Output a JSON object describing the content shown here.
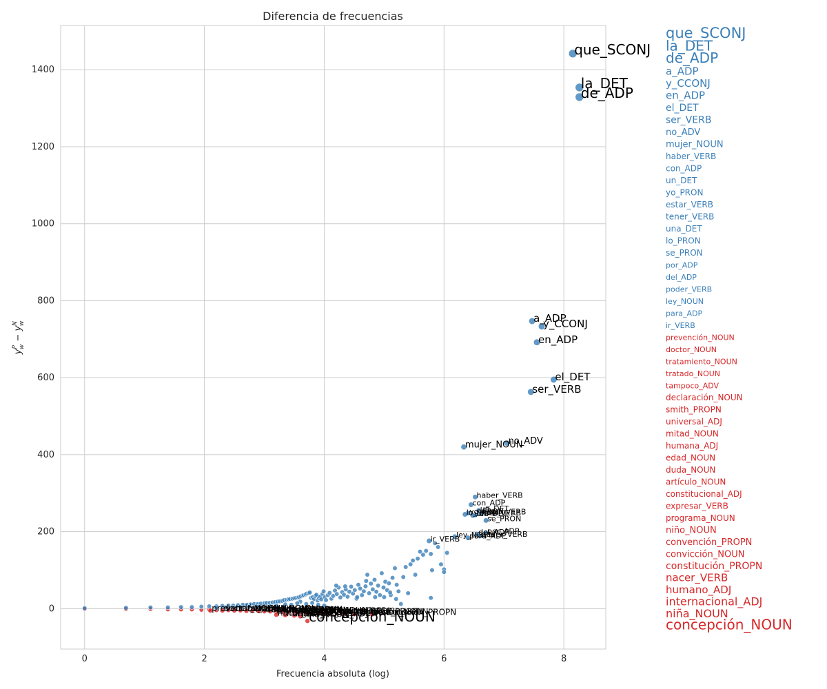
{
  "colors": {
    "positive": "#3b7fb8",
    "negative": "#d62728",
    "grid": "#cccccc"
  },
  "chart_data": {
    "type": "scatter",
    "title": "Diferencia de frecuencias",
    "xlabel": "Frecuencia absoluta (log)",
    "ylabel": "y_w^P − y_w^N",
    "xlim": [
      -0.4,
      8.7
    ],
    "ylim": [
      -105,
      1515
    ],
    "xticks": [
      0,
      2,
      4,
      6,
      8
    ],
    "yticks": [
      0,
      200,
      400,
      600,
      800,
      1000,
      1200,
      1400
    ],
    "grid": true,
    "labeled_points": [
      {
        "word": "que_SCONJ",
        "x": 8.15,
        "y": 1442,
        "group": "positive"
      },
      {
        "word": "la_DET",
        "x": 8.26,
        "y": 1354,
        "group": "positive"
      },
      {
        "word": "de_ADP",
        "x": 8.26,
        "y": 1329,
        "group": "positive"
      },
      {
        "word": "a_ADP",
        "x": 7.47,
        "y": 747,
        "group": "positive"
      },
      {
        "word": "y_CCONJ",
        "x": 7.63,
        "y": 733,
        "group": "positive"
      },
      {
        "word": "en_ADP",
        "x": 7.55,
        "y": 692,
        "group": "positive"
      },
      {
        "word": "el_DET",
        "x": 7.83,
        "y": 595,
        "group": "positive"
      },
      {
        "word": "ser_VERB",
        "x": 7.45,
        "y": 563,
        "group": "positive"
      },
      {
        "word": "no_ADV",
        "x": 7.05,
        "y": 430,
        "group": "positive"
      },
      {
        "word": "mujer_NOUN",
        "x": 6.33,
        "y": 420,
        "group": "positive"
      },
      {
        "word": "haber_VERB",
        "x": 6.52,
        "y": 290,
        "group": "positive"
      },
      {
        "word": "con_ADP",
        "x": 6.45,
        "y": 270,
        "group": "positive"
      },
      {
        "word": "un_DET",
        "x": 6.58,
        "y": 255,
        "group": "positive"
      },
      {
        "word": "yo_PRON",
        "x": 6.4,
        "y": 248,
        "group": "positive"
      },
      {
        "word": "estar_VERB",
        "x": 6.62,
        "y": 247,
        "group": "positive"
      },
      {
        "word": "tener_VERB",
        "x": 6.52,
        "y": 244,
        "group": "positive"
      },
      {
        "word": "una_DET",
        "x": 6.48,
        "y": 242,
        "group": "positive"
      },
      {
        "word": "lo_PRON",
        "x": 6.35,
        "y": 245,
        "group": "positive"
      },
      {
        "word": "se_PRON",
        "x": 6.7,
        "y": 229,
        "group": "positive"
      },
      {
        "word": "por_ADP",
        "x": 6.7,
        "y": 197,
        "group": "positive"
      },
      {
        "word": "del_ADP",
        "x": 6.55,
        "y": 194,
        "group": "positive"
      },
      {
        "word": "poder_VERB",
        "x": 6.6,
        "y": 189,
        "group": "positive"
      },
      {
        "word": "ley_NOUN",
        "x": 6.18,
        "y": 187,
        "group": "positive"
      },
      {
        "word": "para_ADP",
        "x": 6.4,
        "y": 184,
        "group": "positive"
      },
      {
        "word": "ir_VERB",
        "x": 5.75,
        "y": 176,
        "group": "positive"
      },
      {
        "word": "prevención_NOUN",
        "x": 2.1,
        "y": -5,
        "group": "negative"
      },
      {
        "word": "doctor_NOUN",
        "x": 2.3,
        "y": -5,
        "group": "negative"
      },
      {
        "word": "tratamiento_NOUN",
        "x": 2.5,
        "y": -5,
        "group": "negative"
      },
      {
        "word": "tratado_NOUN",
        "x": 2.7,
        "y": -6,
        "group": "negative"
      },
      {
        "word": "tampoco_ADV",
        "x": 2.9,
        "y": -6,
        "group": "negative"
      },
      {
        "word": "declaración_NOUN",
        "x": 3.0,
        "y": -7,
        "group": "negative"
      },
      {
        "word": "smith_PROPN",
        "x": 3.1,
        "y": -7,
        "group": "negative"
      },
      {
        "word": "universal_ADJ",
        "x": 3.2,
        "y": -8,
        "group": "negative"
      },
      {
        "word": "mitad_NOUN",
        "x": 3.3,
        "y": -8,
        "group": "negative"
      },
      {
        "word": "humana_ADJ",
        "x": 3.4,
        "y": -9,
        "group": "negative"
      },
      {
        "word": "edad_NOUN",
        "x": 3.5,
        "y": -9,
        "group": "negative"
      },
      {
        "word": "duda_NOUN",
        "x": 3.6,
        "y": -10,
        "group": "negative"
      },
      {
        "word": "artículo_NOUN",
        "x": 3.7,
        "y": -10,
        "group": "negative"
      },
      {
        "word": "constitucional_ADJ",
        "x": 3.8,
        "y": -11,
        "group": "negative"
      },
      {
        "word": "expresar_VERB",
        "x": 3.9,
        "y": -11,
        "group": "negative"
      },
      {
        "word": "programa_NOUN",
        "x": 4.0,
        "y": -12,
        "group": "negative"
      },
      {
        "word": "niño_NOUN",
        "x": 4.1,
        "y": -12,
        "group": "negative"
      },
      {
        "word": "convención_PROPN",
        "x": 4.3,
        "y": -13,
        "group": "negative"
      },
      {
        "word": "convicción_NOUN",
        "x": 4.5,
        "y": -14,
        "group": "negative"
      },
      {
        "word": "constitución_PROPN",
        "x": 4.8,
        "y": -15,
        "group": "negative"
      },
      {
        "word": "nacer_VERB",
        "x": 3.2,
        "y": -16,
        "group": "negative"
      },
      {
        "word": "humano_ADJ",
        "x": 3.35,
        "y": -17,
        "group": "negative"
      },
      {
        "word": "internacional_ADJ",
        "x": 3.5,
        "y": -18,
        "group": "negative"
      },
      {
        "word": "niña_NOUN",
        "x": 3.6,
        "y": -20,
        "group": "negative"
      },
      {
        "word": "concepción_NOUN",
        "x": 3.72,
        "y": -32,
        "group": "negative"
      }
    ],
    "unlabeled_positive_points": [
      [
        0,
        1
      ],
      [
        0.69,
        2
      ],
      [
        1.1,
        3
      ],
      [
        1.39,
        3
      ],
      [
        1.61,
        4
      ],
      [
        1.79,
        4
      ],
      [
        1.95,
        5
      ],
      [
        2.08,
        6
      ],
      [
        2.2,
        6
      ],
      [
        2.3,
        7
      ],
      [
        2.4,
        8
      ],
      [
        2.48,
        8
      ],
      [
        2.56,
        9
      ],
      [
        2.64,
        10
      ],
      [
        2.71,
        10
      ],
      [
        2.77,
        11
      ],
      [
        2.83,
        12
      ],
      [
        2.89,
        12
      ],
      [
        2.94,
        13
      ],
      [
        3.0,
        14
      ],
      [
        3.04,
        15
      ],
      [
        3.09,
        15
      ],
      [
        3.14,
        16
      ],
      [
        3.18,
        17
      ],
      [
        3.22,
        18
      ],
      [
        3.26,
        19
      ],
      [
        3.3,
        20
      ],
      [
        3.33,
        22
      ],
      [
        3.37,
        23
      ],
      [
        3.4,
        24
      ],
      [
        3.43,
        25
      ],
      [
        3.47,
        26
      ],
      [
        3.5,
        27
      ],
      [
        3.53,
        28
      ],
      [
        3.56,
        29
      ],
      [
        3.58,
        30
      ],
      [
        3.61,
        32
      ],
      [
        3.64,
        34
      ],
      [
        3.66,
        35
      ],
      [
        3.69,
        37
      ],
      [
        3.71,
        39
      ],
      [
        3.74,
        40
      ],
      [
        3.76,
        42
      ],
      [
        3.78,
        28
      ],
      [
        3.81,
        30
      ],
      [
        3.83,
        25
      ],
      [
        3.85,
        33
      ],
      [
        3.87,
        36
      ],
      [
        3.89,
        21
      ],
      [
        3.91,
        27
      ],
      [
        3.93,
        31
      ],
      [
        3.95,
        24
      ],
      [
        3.97,
        38
      ],
      [
        3.99,
        45
      ],
      [
        4.01,
        30
      ],
      [
        4.03,
        22
      ],
      [
        4.06,
        35
      ],
      [
        4.09,
        41
      ],
      [
        4.12,
        26
      ],
      [
        4.15,
        33
      ],
      [
        4.18,
        47
      ],
      [
        4.21,
        38
      ],
      [
        4.24,
        55
      ],
      [
        4.27,
        29
      ],
      [
        4.3,
        43
      ],
      [
        4.33,
        36
      ],
      [
        4.36,
        50
      ],
      [
        4.39,
        31
      ],
      [
        4.42,
        44
      ],
      [
        4.45,
        57
      ],
      [
        4.48,
        39
      ],
      [
        4.51,
        48
      ],
      [
        4.54,
        26
      ],
      [
        4.57,
        62
      ],
      [
        4.6,
        52
      ],
      [
        4.63,
        35
      ],
      [
        4.66,
        45
      ],
      [
        4.69,
        58
      ],
      [
        4.72,
        88
      ],
      [
        4.75,
        40
      ],
      [
        4.78,
        65
      ],
      [
        4.81,
        50
      ],
      [
        4.84,
        75
      ],
      [
        4.87,
        44
      ],
      [
        4.9,
        60
      ],
      [
        4.93,
        35
      ],
      [
        4.96,
        92
      ],
      [
        4.99,
        55
      ],
      [
        5.02,
        70
      ],
      [
        5.05,
        48
      ],
      [
        5.08,
        66
      ],
      [
        5.11,
        35
      ],
      [
        5.14,
        80
      ],
      [
        5.18,
        105
      ],
      [
        5.21,
        62
      ],
      [
        5.24,
        45
      ],
      [
        5.28,
        12
      ],
      [
        5.32,
        82
      ],
      [
        5.36,
        108
      ],
      [
        5.4,
        40
      ],
      [
        5.44,
        115
      ],
      [
        5.48,
        125
      ],
      [
        5.52,
        88
      ],
      [
        5.56,
        130
      ],
      [
        5.6,
        148
      ],
      [
        5.65,
        140
      ],
      [
        5.7,
        150
      ],
      [
        5.78,
        142
      ],
      [
        5.8,
        100
      ],
      [
        5.85,
        170
      ],
      [
        5.9,
        160
      ],
      [
        5.95,
        115
      ],
      [
        6.0,
        102
      ],
      [
        6.0,
        95
      ],
      [
        6.05,
        145
      ],
      [
        5.78,
        28
      ],
      [
        4.2,
        60
      ],
      [
        4.35,
        58
      ],
      [
        4.55,
        30
      ],
      [
        4.7,
        72
      ],
      [
        4.85,
        30
      ],
      [
        5.0,
        30
      ],
      [
        5.1,
        42
      ],
      [
        5.2,
        25
      ],
      [
        3.6,
        18
      ],
      [
        3.7,
        12
      ],
      [
        3.8,
        15
      ],
      [
        3.9,
        10
      ],
      [
        4.0,
        8
      ],
      [
        2.5,
        3
      ],
      [
        2.9,
        5
      ],
      [
        3.1,
        6
      ],
      [
        3.2,
        8
      ],
      [
        3.45,
        10
      ],
      [
        2.2,
        2
      ],
      [
        2.35,
        3
      ],
      [
        2.6,
        4
      ],
      [
        2.75,
        5
      ],
      [
        3.35,
        11
      ],
      [
        3.55,
        14
      ]
    ],
    "unlabeled_negative_points": [
      [
        0,
        -1
      ],
      [
        0.69,
        -1
      ],
      [
        1.1,
        -1
      ],
      [
        1.39,
        -2
      ],
      [
        1.61,
        -2
      ],
      [
        1.79,
        -2
      ],
      [
        1.95,
        -3
      ],
      [
        2.08,
        -3
      ],
      [
        2.2,
        -4
      ],
      [
        2.4,
        -4
      ],
      [
        2.6,
        -5
      ],
      [
        2.8,
        -5
      ]
    ],
    "word_list": [
      {
        "word": "que_SCONJ",
        "group": "positive",
        "size": 21
      },
      {
        "word": "la_DET",
        "group": "positive",
        "size": 20
      },
      {
        "word": "de_ADP",
        "group": "positive",
        "size": 20
      },
      {
        "word": "a_ADP",
        "group": "positive",
        "size": 15
      },
      {
        "word": "y_CCONJ",
        "group": "positive",
        "size": 15
      },
      {
        "word": "en_ADP",
        "group": "positive",
        "size": 15
      },
      {
        "word": "el_DET",
        "group": "positive",
        "size": 14
      },
      {
        "word": "ser_VERB",
        "group": "positive",
        "size": 14
      },
      {
        "word": "no_ADV",
        "group": "positive",
        "size": 13
      },
      {
        "word": "mujer_NOUN",
        "group": "positive",
        "size": 13
      },
      {
        "word": "haber_VERB",
        "group": "positive",
        "size": 12
      },
      {
        "word": "con_ADP",
        "group": "positive",
        "size": 12
      },
      {
        "word": "un_DET",
        "group": "positive",
        "size": 12
      },
      {
        "word": "yo_PRON",
        "group": "positive",
        "size": 12
      },
      {
        "word": "estar_VERB",
        "group": "positive",
        "size": 12
      },
      {
        "word": "tener_VERB",
        "group": "positive",
        "size": 12
      },
      {
        "word": "una_DET",
        "group": "positive",
        "size": 12
      },
      {
        "word": "lo_PRON",
        "group": "positive",
        "size": 12
      },
      {
        "word": "se_PRON",
        "group": "positive",
        "size": 12
      },
      {
        "word": "por_ADP",
        "group": "positive",
        "size": 11
      },
      {
        "word": "del_ADP",
        "group": "positive",
        "size": 11
      },
      {
        "word": "poder_VERB",
        "group": "positive",
        "size": 11
      },
      {
        "word": "ley_NOUN",
        "group": "positive",
        "size": 11
      },
      {
        "word": "para_ADP",
        "group": "positive",
        "size": 11
      },
      {
        "word": "ir_VERB",
        "group": "positive",
        "size": 11
      },
      {
        "word": "prevención_NOUN",
        "group": "negative",
        "size": 11
      },
      {
        "word": "doctor_NOUN",
        "group": "negative",
        "size": 11
      },
      {
        "word": "tratamiento_NOUN",
        "group": "negative",
        "size": 11
      },
      {
        "word": "tratado_NOUN",
        "group": "negative",
        "size": 11
      },
      {
        "word": "tampoco_ADV",
        "group": "negative",
        "size": 11
      },
      {
        "word": "declaración_NOUN",
        "group": "negative",
        "size": 12
      },
      {
        "word": "smith_PROPN",
        "group": "negative",
        "size": 12
      },
      {
        "word": "universal_ADJ",
        "group": "negative",
        "size": 12
      },
      {
        "word": "mitad_NOUN",
        "group": "negative",
        "size": 12
      },
      {
        "word": "humana_ADJ",
        "group": "negative",
        "size": 12
      },
      {
        "word": "edad_NOUN",
        "group": "negative",
        "size": 12
      },
      {
        "word": "duda_NOUN",
        "group": "negative",
        "size": 12
      },
      {
        "word": "artículo_NOUN",
        "group": "negative",
        "size": 12
      },
      {
        "word": "constitucional_ADJ",
        "group": "negative",
        "size": 12
      },
      {
        "word": "expresar_VERB",
        "group": "negative",
        "size": 12
      },
      {
        "word": "programa_NOUN",
        "group": "negative",
        "size": 12
      },
      {
        "word": "niño_NOUN",
        "group": "negative",
        "size": 13
      },
      {
        "word": "convención_PROPN",
        "group": "negative",
        "size": 13
      },
      {
        "word": "convicción_NOUN",
        "group": "negative",
        "size": 13
      },
      {
        "word": "constitución_PROPN",
        "group": "negative",
        "size": 14
      },
      {
        "word": "nacer_VERB",
        "group": "negative",
        "size": 15
      },
      {
        "word": "humano_ADJ",
        "group": "negative",
        "size": 15
      },
      {
        "word": "internacional_ADJ",
        "group": "negative",
        "size": 16
      },
      {
        "word": "niña_NOUN",
        "group": "negative",
        "size": 16
      },
      {
        "word": "concepción_NOUN",
        "group": "negative",
        "size": 20
      }
    ]
  }
}
